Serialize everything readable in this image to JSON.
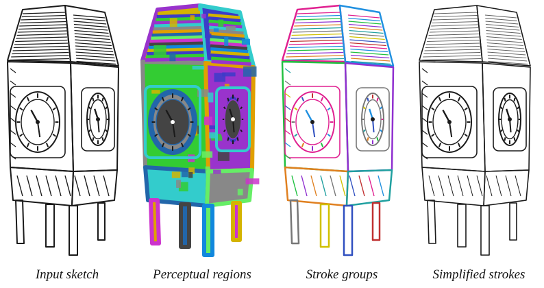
{
  "panels": [
    {
      "caption": "Input sketch",
      "style": "sketch"
    },
    {
      "caption": "Perceptual regions",
      "style": "regions"
    },
    {
      "caption": "Stroke groups",
      "style": "groups"
    },
    {
      "caption": "Simplified strokes",
      "style": "simplified"
    }
  ],
  "colors": {
    "ink": "#1a1a1a",
    "region_palette": [
      "#d4b400",
      "#3c3cc8",
      "#33cc33",
      "#9933cc",
      "#33cccc",
      "#888888",
      "#e0a000",
      "#2266aa",
      "#66ee66",
      "#cc33cc",
      "#444444",
      "#1188dd"
    ],
    "group_palette": [
      "#e02090",
      "#2090e0",
      "#20c040",
      "#9030d0",
      "#e08020",
      "#20a0a0",
      "#777777",
      "#d0c000",
      "#3050c0",
      "#c03030"
    ]
  }
}
